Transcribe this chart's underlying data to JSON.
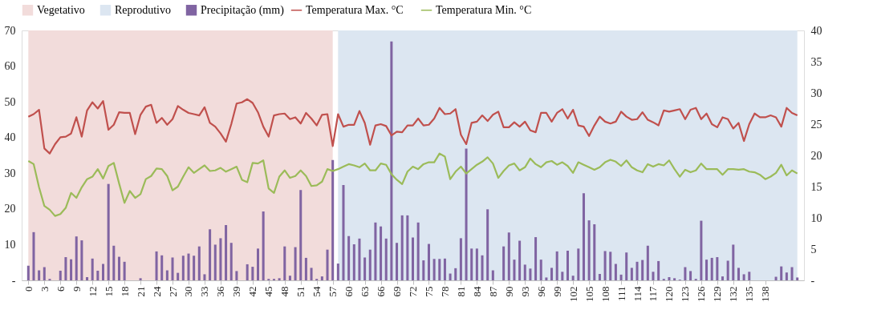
{
  "chart_data": {
    "type": "bar",
    "x": [
      0,
      1,
      2,
      3,
      4,
      5,
      6,
      7,
      8,
      9,
      10,
      11,
      12,
      13,
      14,
      15,
      16,
      17,
      18,
      19,
      20,
      21,
      22,
      23,
      24,
      25,
      26,
      27,
      28,
      29,
      30,
      31,
      32,
      33,
      34,
      35,
      36,
      37,
      38,
      39,
      40,
      41,
      42,
      43,
      44,
      45,
      46,
      47,
      48,
      49,
      50,
      51,
      52,
      53,
      54,
      55,
      56,
      57,
      58,
      59,
      60,
      61,
      62,
      63,
      64,
      65,
      66,
      67,
      68,
      69,
      70,
      71,
      72,
      73,
      74,
      75,
      76,
      77,
      78,
      79,
      80,
      81,
      82,
      83,
      84,
      85,
      86,
      87,
      88,
      89,
      90,
      91,
      92,
      93,
      94,
      95,
      96,
      97,
      98,
      99,
      100,
      101,
      102,
      103,
      104,
      105,
      106,
      107,
      108,
      109,
      110,
      111,
      112,
      113,
      114,
      115,
      116,
      117,
      118,
      119,
      120,
      121,
      122,
      123,
      124,
      125,
      126,
      127,
      128,
      129,
      130,
      131,
      132,
      133,
      134,
      135,
      136,
      137,
      138,
      139,
      140,
      141,
      142,
      143,
      144
    ],
    "xlim": [
      -0.5,
      144.5
    ],
    "xticks": [
      0,
      3,
      6,
      9,
      12,
      15,
      18,
      21,
      24,
      27,
      30,
      33,
      36,
      39,
      42,
      45,
      48,
      51,
      54,
      57,
      60,
      63,
      66,
      69,
      72,
      75,
      78,
      81,
      84,
      87,
      90,
      93,
      96,
      99,
      102,
      105,
      108,
      111,
      114,
      117,
      120,
      123,
      126,
      129,
      132,
      135,
      138
    ],
    "ylim": [
      0,
      70
    ],
    "yticks": [
      {
        "value": 0,
        "label": "-"
      },
      10,
      20,
      30,
      40,
      50,
      60,
      70
    ],
    "y2lim": [
      0,
      40
    ],
    "y2ticks": [
      {
        "value": 0,
        "label": "-"
      },
      5,
      10,
      15,
      20,
      25,
      30,
      35,
      40
    ],
    "legend": "top",
    "grid": false,
    "marker": "none",
    "line_style": "solid",
    "bands": [
      {
        "axis": "x",
        "from": 0,
        "to": 57,
        "label": "Vegetativo",
        "color": "#f2dcdb"
      },
      {
        "axis": "x",
        "from": 58,
        "to": 144,
        "label": "Reprodutivo",
        "color": "#dce6f1"
      }
    ],
    "series": [
      {
        "name": "Precipitação (mm)",
        "color": "#8064a2",
        "values": [
          4.1,
          13.5,
          2.8,
          3.7,
          0.4,
          0,
          2.7,
          6.5,
          5.9,
          12.3,
          11.2,
          0.9,
          6.1,
          2.7,
          4.6,
          27,
          9.7,
          6.6,
          5.2,
          0,
          0,
          0.6,
          0,
          0,
          8.1,
          7.0,
          2.8,
          6.4,
          2.1,
          6.9,
          7.5,
          6.9,
          9.5,
          1.7,
          14.3,
          10.0,
          11.8,
          15.5,
          10.5,
          2.6,
          0,
          4.5,
          3.8,
          8.9,
          19.3,
          0.4,
          0.4,
          0.6,
          9.5,
          1.3,
          9.3,
          25.3,
          6.3,
          3.5,
          0.4,
          1.1,
          8.6,
          33.7,
          4.7,
          26.7,
          12.4,
          10.1,
          11.7,
          6.4,
          8.6,
          16.2,
          15.1,
          11.7,
          66.9,
          10.5,
          18.2,
          18.2,
          12.0,
          16.2,
          5.6,
          10.2,
          6.0,
          6.0,
          6.1,
          1.9,
          3.4,
          11.8,
          36.9,
          8.9,
          8.9,
          7.0,
          19.9,
          2.8,
          0,
          9.5,
          13.4,
          5.8,
          11.1,
          4.4,
          3.3,
          12.1,
          5.8,
          0.8,
          3.5,
          8.1,
          2.4,
          8.3,
          1.3,
          8.9,
          24.4,
          16.8,
          15.7,
          1.8,
          8.2,
          8.0,
          4.6,
          1.6,
          7.8,
          3.5,
          5.2,
          5.7,
          9.7,
          2.4,
          5.4,
          0.4,
          0.9,
          0.6,
          0.2,
          3.7,
          2.6,
          0.4,
          16.7,
          5.8,
          6.3,
          6.5,
          1.1,
          5.5,
          10.0,
          3.5,
          1.7,
          2.4,
          0,
          0,
          0,
          0,
          1.0,
          3.9,
          2.2,
          3.7,
          0.8
        ]
      },
      {
        "name": "Temperatura Max. °C",
        "type": "line",
        "axis": "y2",
        "color": "#c0504d",
        "values": [
          26.2,
          26.6,
          27.3,
          21.1,
          20.3,
          21.8,
          22.9,
          23.0,
          23.5,
          26.1,
          23.0,
          27.2,
          28.5,
          27.5,
          28.7,
          24.1,
          24.9,
          26.9,
          26.8,
          26.8,
          23.4,
          26.5,
          27.8,
          28.1,
          25.2,
          26.0,
          24.9,
          25.8,
          27.9,
          27.3,
          26.8,
          26.6,
          26.4,
          27.7,
          25.2,
          24.6,
          23.5,
          22.2,
          25.0,
          28.3,
          28.5,
          29.0,
          28.4,
          26.9,
          24.6,
          23.0,
          26.4,
          26.6,
          26.7,
          25.8,
          26.1,
          25.1,
          26.8,
          25.9,
          24.8,
          26.5,
          26.6,
          21.5,
          26.6,
          24.6,
          24.9,
          24.9,
          27.1,
          25.2,
          21.7,
          24.8,
          25.0,
          24.7,
          23.2,
          23.8,
          23.7,
          24.8,
          24.8,
          25.9,
          24.8,
          24.9,
          25.9,
          27.6,
          26.6,
          26.7,
          27.4,
          23.3,
          21.8,
          25.2,
          25.4,
          26.4,
          25.5,
          26.5,
          27.0,
          24.5,
          24.5,
          25.3,
          24.6,
          25.4,
          24.0,
          23.7,
          26.8,
          26.8,
          25.4,
          26.8,
          27.4,
          25.9,
          27.3,
          24.8,
          24.6,
          23.1,
          24.8,
          26.2,
          25.4,
          25.1,
          25.4,
          27.0,
          26.2,
          25.7,
          25.8,
          26.9,
          25.7,
          25.3,
          24.8,
          27.2,
          27.0,
          27.2,
          27.4,
          25.8,
          27.3,
          27.6,
          25.8,
          26.7,
          25.0,
          24.5,
          26.1,
          25.8,
          24.3,
          25.2,
          22.3,
          25.0,
          26.7,
          26.1,
          26.1,
          26.4,
          26.1,
          24.6,
          27.6,
          26.8,
          26.4
        ]
      },
      {
        "name": "Temperatura Min. °C",
        "type": "line",
        "axis": "y2",
        "color": "#9bbb59",
        "values": [
          19.1,
          18.6,
          14.9,
          11.9,
          11.3,
          10.3,
          10.6,
          11.6,
          14.0,
          13.2,
          14.9,
          16.2,
          16.6,
          17.8,
          16.3,
          18.3,
          18.8,
          15.5,
          12.4,
          14.3,
          13.2,
          13.8,
          16.2,
          16.7,
          17.9,
          17.8,
          16.7,
          14.4,
          15.0,
          16.6,
          18.1,
          17.2,
          17.8,
          18.4,
          17.5,
          17.6,
          18.0,
          17.4,
          17.8,
          18.2,
          16.1,
          15.7,
          18.8,
          18.7,
          19.2,
          14.7,
          14.0,
          16.6,
          17.6,
          16.4,
          16.7,
          17.6,
          16.7,
          15.1,
          15.2,
          15.8,
          17.8,
          17.5,
          17.8,
          18.2,
          18.6,
          18.4,
          18.1,
          18.7,
          17.6,
          17.6,
          18.7,
          18.5,
          17.0,
          16.1,
          15.4,
          17.4,
          18.2,
          17.8,
          18.6,
          18.9,
          18.9,
          20.3,
          19.8,
          16.2,
          17.4,
          18.2,
          17.1,
          17.8,
          18.5,
          19.0,
          19.7,
          18.7,
          16.4,
          17.5,
          18.4,
          18.7,
          17.6,
          18.1,
          19.5,
          18.6,
          18.1,
          18.9,
          19.1,
          18.5,
          18.9,
          18.3,
          17.2,
          18.9,
          18.5,
          18.1,
          17.7,
          18.1,
          18.9,
          19.3,
          19.0,
          18.3,
          19.2,
          18.1,
          17.6,
          17.3,
          18.6,
          18.2,
          18.6,
          18.4,
          19.2,
          17.8,
          16.6,
          17.7,
          17.3,
          17.6,
          18.7,
          17.8,
          17.8,
          17.8,
          16.9,
          17.8,
          17.8,
          17.7,
          17.8,
          17.4,
          17.3,
          16.9,
          16.2,
          16.6,
          17.2,
          18.5,
          16.8,
          17.6,
          17.1
        ]
      }
    ]
  }
}
